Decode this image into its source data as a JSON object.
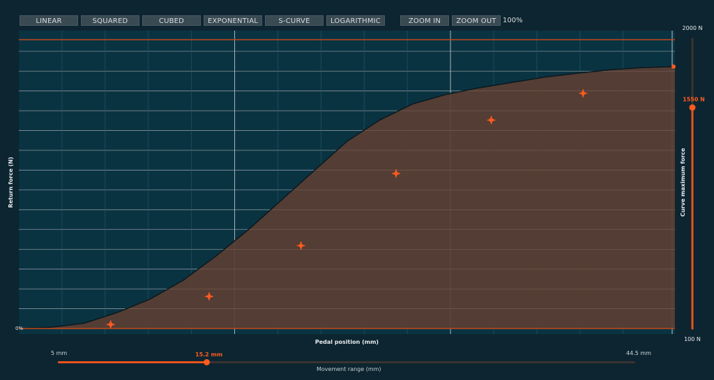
{
  "toolbar": {
    "linear": "LINEAR",
    "squared": "SQUARED",
    "cubed": "CUBED",
    "exponential": "EXPONENTIAL",
    "s_curve": "S-CURVE",
    "logarithmic": "LOGARITHMIC",
    "zoom_in": "ZOOM IN",
    "zoom_out": "ZOOM OUT",
    "zoom_level": "100%"
  },
  "chart_data": {
    "type": "area",
    "xlabel": "Pedal position (mm)",
    "ylabel": "Return force (N)",
    "y_origin_label": "0%",
    "x": [
      0,
      5,
      10,
      15,
      20,
      25,
      30,
      35,
      40,
      45,
      50,
      55,
      60,
      65,
      70,
      75,
      80,
      85,
      90,
      95,
      100
    ],
    "values": [
      0,
      0.5,
      2,
      6,
      11,
      18,
      27,
      37,
      48,
      59,
      70,
      78,
      84,
      87.5,
      90,
      92,
      94,
      95.5,
      96.8,
      97.6,
      98
    ],
    "points": [
      {
        "x": 14,
        "y": 1.5
      },
      {
        "x": 29,
        "y": 12
      },
      {
        "x": 43,
        "y": 31
      },
      {
        "x": 57.5,
        "y": 58
      },
      {
        "x": 72,
        "y": 78
      },
      {
        "x": 86,
        "y": 88
      }
    ],
    "xlim": [
      0,
      100
    ],
    "ylim": [
      0,
      100
    ],
    "grid": true,
    "colors": {
      "plot_bg": "#0a3342",
      "fill": "#5b3e33",
      "curve": "#0b1a20",
      "point": "#ff5a1f",
      "grid": "#9aa7ad",
      "border": "#c0491a"
    }
  },
  "force_slider": {
    "max_label": "2000 N",
    "min_label": "100 N",
    "value_label": "1550 N",
    "axis_label": "Curve maximum force",
    "value": 1550,
    "min": 100,
    "max": 2000
  },
  "movement_range": {
    "min_label": "5 mm",
    "max_label": "44.5 mm",
    "value_label": "15.2 mm",
    "label": "Movement range (mm)",
    "value": 15.2,
    "min": 5,
    "max": 44.5
  }
}
